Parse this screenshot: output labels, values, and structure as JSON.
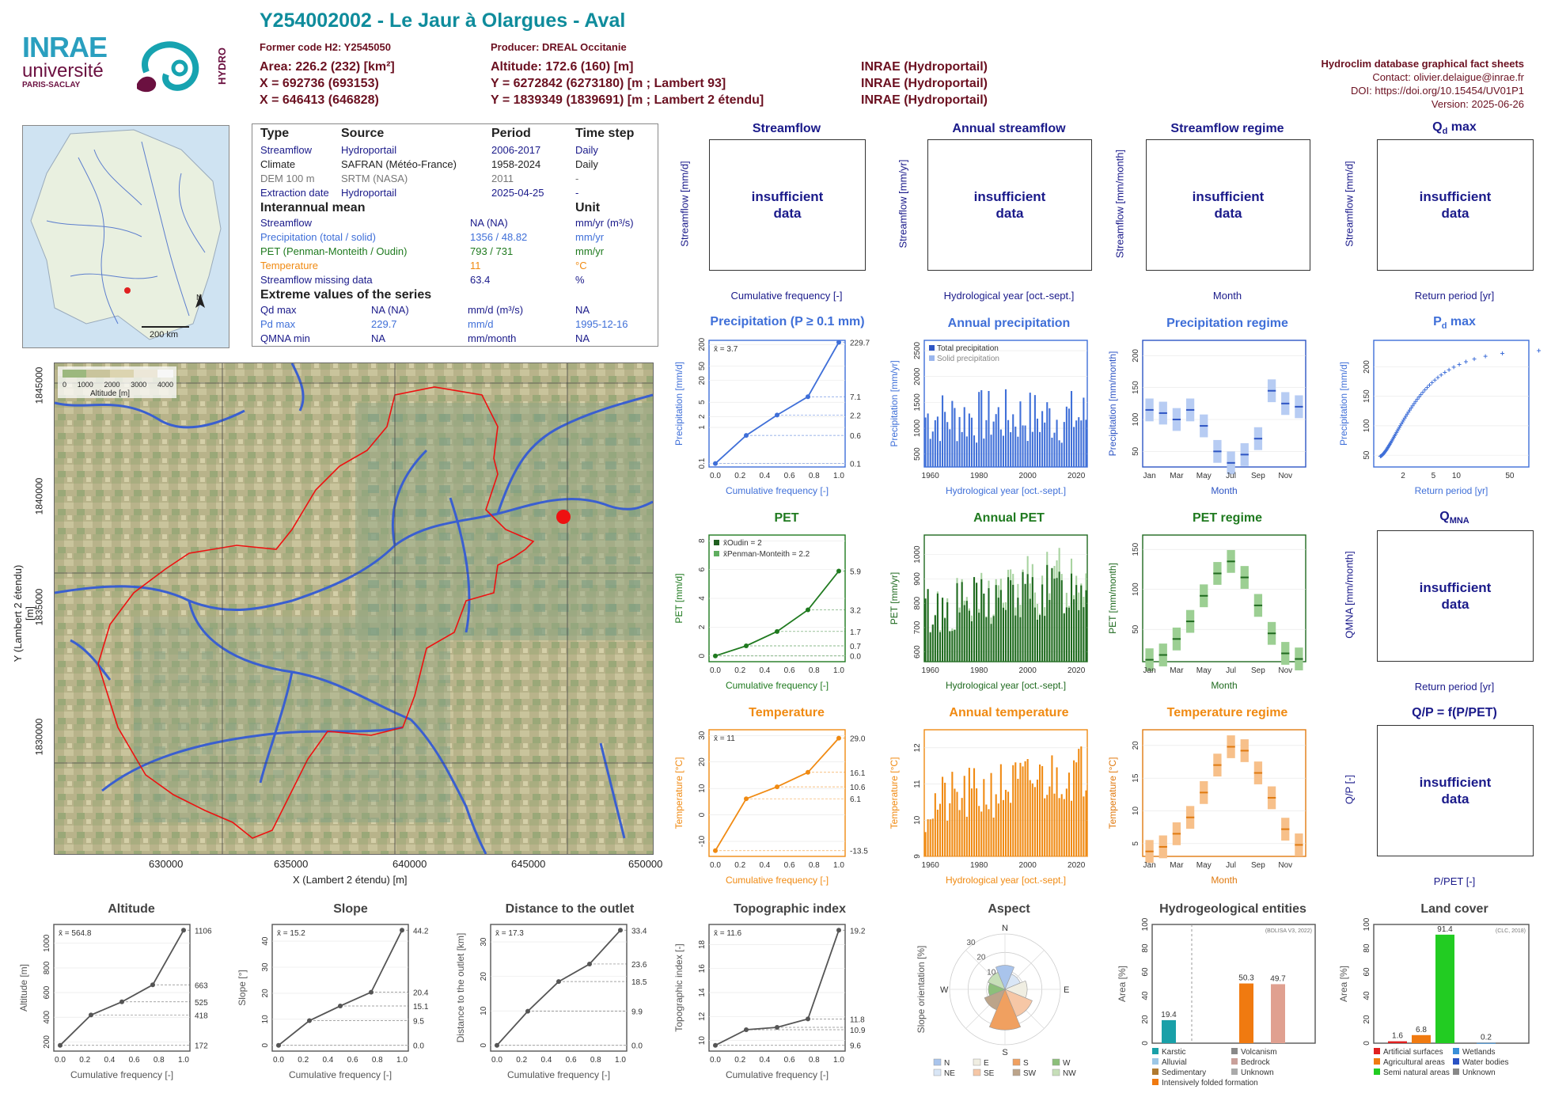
{
  "header": {
    "title": "Y254002002 - Le Jaur à Olargues - Aval",
    "former_code": "Former code H2: Y2545050",
    "producer": "Producer: DREAL Occitanie",
    "area": "Area: 226.2 (232) [km²]",
    "x_l93": "X = 692736 (693153)",
    "x_l2": "X = 646413 (646828)",
    "altitude": "Altitude: 172.6 (160) [m]",
    "y_l93": "Y = 6272842 (6273180) [m ; Lambert 93]",
    "y_l2": "Y = 1839349 (1839691) [m ; Lambert 2 étendu]",
    "src1": "INRAE (Hydroportail)",
    "src2": "INRAE (Hydroportail)",
    "src3": "INRAE (Hydroportail)",
    "db_title": "Hydroclim database graphical fact sheets",
    "contact": "Contact: olivier.delaigue@inrae.fr",
    "doi": "DOI: https://doi.org/10.15454/UV01P1",
    "version": "Version: 2025-06-26"
  },
  "logos": {
    "inrae": "INRAE",
    "universite": "université",
    "paris_saclay": "PARIS-SACLAY",
    "hydro": "HYDRO"
  },
  "locator_map": {
    "north": "N",
    "scale": "200 km"
  },
  "info": {
    "col_type": "Type",
    "col_source": "Source",
    "col_period": "Period",
    "col_timestep": "Time step",
    "rows": [
      {
        "type": "Streamflow",
        "source": "Hydroportail",
        "period": "2006-2017",
        "step": "Daily"
      },
      {
        "type": "Climate",
        "source": "SAFRAN (Météo-France)",
        "period": "1958-2024",
        "step": "Daily"
      },
      {
        "type": "DEM 100 m",
        "source": "SRTM (NASA)",
        "period": "2011",
        "step": "-"
      },
      {
        "type": "Extraction date",
        "source": "Hydroportail",
        "period": "2025-04-25",
        "step": "-"
      }
    ],
    "interannual_title": "Interannual mean",
    "unit_title": "Unit",
    "mean_rows": [
      {
        "label": "Streamflow",
        "value": "NA (NA)",
        "unit": "mm/yr (m³/s)"
      },
      {
        "label": "Precipitation (total / solid)",
        "value": "1356 / 48.82",
        "unit": "mm/yr"
      },
      {
        "label": "PET (Penman-Monteith / Oudin)",
        "value": "793 / 731",
        "unit": "mm/yr"
      },
      {
        "label": "Temperature",
        "value": "11",
        "unit": "°C"
      },
      {
        "label": "Streamflow missing data",
        "value": "63.4",
        "unit": "%"
      }
    ],
    "extreme_title": "Extreme values of the series",
    "extreme_rows": [
      {
        "label": "Qd max",
        "value": "NA (NA)",
        "unit": "mm/d (m³/s)",
        "date": "NA"
      },
      {
        "label": "Pd max",
        "value": "229.7",
        "unit": "mm/d",
        "date": "1995-12-16"
      },
      {
        "label": "QMNA min",
        "value": "NA",
        "unit": "mm/month",
        "date": "NA"
      }
    ]
  },
  "basin_map": {
    "legend_title": "Altitude [m]",
    "legend_ticks": [
      "0",
      "1000",
      "2000",
      "3000",
      "4000"
    ],
    "x_label": "X (Lambert 2 étendu) [m]",
    "y_label": "Y (Lambert 2 étendu) [m]",
    "x_ticks": [
      "630000",
      "635000",
      "640000",
      "645000",
      "650000"
    ],
    "y_ticks": [
      "1845000",
      "1840000",
      "1835000",
      "1830000"
    ]
  },
  "panels": {
    "streamflow": {
      "title": "Streamflow",
      "ylabel": "Streamflow [mm/d]",
      "xlabel": "Cumulative frequency [-]",
      "msg1": "insufficient",
      "msg2": "data"
    },
    "annual_streamflow": {
      "title": "Annual streamflow",
      "ylabel": "Streamflow [mm/yr]",
      "xlabel": "Hydrological year [oct.-sept.]",
      "msg1": "insufficient",
      "msg2": "data"
    },
    "streamflow_regime": {
      "title": "Streamflow regime",
      "ylabel": "Streamflow [mm/month]",
      "xlabel": "Month",
      "msg1": "insufficient",
      "msg2": "data"
    },
    "qd_max": {
      "title": "Q",
      "title_sub": "d",
      "title_rest": " max",
      "ylabel": "Streamflow [mm/d]",
      "xlabel": "Return period [yr]",
      "msg1": "insufficient",
      "msg2": "data"
    },
    "precip": {
      "title": "Precipitation (P ≥ 0.1 mm)",
      "ylabel": "Precipitation [mm/d]",
      "xlabel": "Cumulative frequency [-]",
      "mean": "x̄ = 3.7"
    },
    "annual_precip": {
      "title": "Annual precipitation",
      "ylabel": "Precipitation [mm/yr]",
      "xlabel": "Hydrological year [oct.-sept.]",
      "legend1": "Total precipitation",
      "legend2": "Solid precipitation"
    },
    "precip_regime": {
      "title": "Precipitation regime",
      "ylabel": "Precipitation [mm/month]",
      "xlabel": "Month"
    },
    "pd_max": {
      "title": "P",
      "title_sub": "d",
      "title_rest": " max",
      "ylabel": "Precipitation [mm/d]",
      "xlabel": "Return period [yr]"
    },
    "pet": {
      "title": "PET",
      "ylabel": "PET [mm/d]",
      "xlabel": "Cumulative frequency [-]",
      "legend1": "x̄Oudin = 2",
      "legend2": "x̄Penman-Monteith = 2.2"
    },
    "annual_pet": {
      "title": "Annual PET",
      "ylabel": "PET [mm/yr]",
      "xlabel": "Hydrological year [oct.-sept.]"
    },
    "pet_regime": {
      "title": "PET regime",
      "ylabel": "PET [mm/month]",
      "xlabel": "Month"
    },
    "qmna": {
      "title": "Q",
      "title_sub": "MNA",
      "ylabel": "QMNA [mm/month]",
      "xlabel": "Return period [yr]",
      "msg1": "insufficient",
      "msg2": "data"
    },
    "temp": {
      "title": "Temperature",
      "ylabel": "Temperature [°C]",
      "xlabel": "Cumulative frequency [-]",
      "mean": "x̄ = 11"
    },
    "annual_temp": {
      "title": "Annual temperature",
      "ylabel": "Temperature [°C]",
      "xlabel": "Hydrological year [oct.-sept.]"
    },
    "temp_regime": {
      "title": "Temperature regime",
      "ylabel": "Temperature [°C]",
      "xlabel": "Month"
    },
    "qp": {
      "title": "Q/P = f(P/PET)",
      "ylabel": "Q/P [-]",
      "xlabel": "P/PET [-]",
      "msg1": "insufficient",
      "msg2": "data"
    },
    "altitude": {
      "title": "Altitude",
      "ylabel": "Altitude [m]",
      "xlabel": "Cumulative frequency [-]",
      "mean": "x̄ = 564.8"
    },
    "slope": {
      "title": "Slope",
      "ylabel": "Slope [°]",
      "xlabel": "Cumulative frequency [-]",
      "mean": "x̄ = 15.2"
    },
    "distance": {
      "title": "Distance to the outlet",
      "ylabel": "Distance to the outlet [km]",
      "xlabel": "Cumulative frequency [-]",
      "mean": "x̄ = 17.3"
    },
    "topo": {
      "title": "Topographic index",
      "ylabel": "Topographic index [-]",
      "xlabel": "Cumulative frequency [-]",
      "mean": "x̄ = 11.6"
    },
    "aspect": {
      "title": "Aspect",
      "ylabel": "Slope orientation [%]",
      "legend": [
        "N",
        "E",
        "S",
        "W",
        "NE",
        "SE",
        "SW",
        "NW"
      ]
    },
    "hydrogeo": {
      "title": "Hydrogeological entities",
      "ylabel": "Area [%]",
      "source": "(BDLISA V3, 2022)",
      "legend": [
        "Karstic",
        "Volcanism",
        "Alluvial",
        "Bedrock",
        "Sedimentary",
        "Unknown",
        "Intensively folded formation"
      ]
    },
    "landcover": {
      "title": "Land cover",
      "ylabel": "Area [%]",
      "source": "(CLC, 2018)",
      "legend": [
        "Artificial surfaces",
        "Wetlands",
        "Agricultural areas",
        "Water bodies",
        "Semi natural areas",
        "Unknown"
      ]
    }
  },
  "chart_data": [
    {
      "type": "line",
      "name": "precip_cdf",
      "x": [
        0,
        0.25,
        0.5,
        0.75,
        1.0
      ],
      "y": [
        0.1,
        0.6,
        2.2,
        7.1,
        229.7
      ],
      "yscale": "log",
      "xlim": [
        0,
        1
      ],
      "yticks": [
        0.1,
        1,
        2,
        5,
        20,
        50,
        200
      ],
      "right_labels": [
        "229.7",
        "7.1",
        "2.2",
        "0.6",
        "0.1"
      ],
      "x_ticks": [
        "0.0",
        "0.2",
        "0.4",
        "0.6",
        "0.8",
        "1.0"
      ]
    },
    {
      "type": "bar",
      "name": "annual_precip",
      "xlim": [
        1958,
        2024
      ],
      "ylim": [
        250,
        2700
      ],
      "yticks": [
        500,
        1000,
        1500,
        2000,
        2500
      ],
      "x_ticks": [
        "1960",
        "1980",
        "2000",
        "2020"
      ]
    },
    {
      "type": "bar",
      "name": "precip_regime",
      "categories": [
        "Jan",
        "Feb",
        "Mar",
        "Apr",
        "May",
        "Jun",
        "Jul",
        "Aug",
        "Sep",
        "Oct",
        "Nov",
        "Dec"
      ],
      "values": [
        115,
        110,
        100,
        115,
        90,
        50,
        32,
        45,
        70,
        145,
        125,
        120
      ],
      "yticks": [
        50,
        100,
        150,
        200
      ],
      "x_ticks": [
        "Jan",
        "Mar",
        "May",
        "Jul",
        "Sep",
        "Nov"
      ]
    },
    {
      "type": "scatter",
      "name": "pd_max",
      "xlabel_ticks": [
        "2",
        "5",
        "10",
        "50"
      ],
      "yticks": [
        50,
        100,
        150,
        200
      ],
      "y_range": [
        48,
        230
      ]
    },
    {
      "type": "line",
      "name": "pet_cdf",
      "x": [
        0,
        0.25,
        0.5,
        0.75,
        1.0
      ],
      "y": [
        0.0,
        0.7,
        1.7,
        3.2,
        5.9
      ],
      "right_labels": [
        "5.9",
        "3.2",
        "1.7",
        "0.7",
        "0.0"
      ],
      "yticks": [
        0,
        2,
        4,
        6,
        8
      ],
      "x_ticks": [
        "0.0",
        "0.2",
        "0.4",
        "0.6",
        "0.8",
        "1.0"
      ]
    },
    {
      "type": "bar",
      "name": "annual_pet",
      "xlim": [
        1958,
        2024
      ],
      "ylim": [
        560,
        1080
      ],
      "yticks": [
        600,
        700,
        800,
        900,
        1000
      ],
      "x_ticks": [
        "1960",
        "1980",
        "2000",
        "2020"
      ]
    },
    {
      "type": "bar",
      "name": "pet_regime",
      "categories": [
        "Jan",
        "Feb",
        "Mar",
        "Apr",
        "May",
        "Jun",
        "Jul",
        "Aug",
        "Sep",
        "Oct",
        "Nov",
        "Dec"
      ],
      "values": [
        12,
        18,
        38,
        60,
        92,
        120,
        135,
        115,
        80,
        45,
        20,
        13
      ],
      "yticks": [
        50,
        100,
        150
      ],
      "x_ticks": [
        "Jan",
        "Mar",
        "May",
        "Jul",
        "Sep",
        "Nov"
      ]
    },
    {
      "type": "line",
      "name": "temp_cdf",
      "x": [
        0,
        0.25,
        0.5,
        0.75,
        1.0
      ],
      "y": [
        -13.5,
        6.1,
        10.6,
        16.1,
        29.0
      ],
      "right_labels": [
        "29.0",
        "16.1",
        "10.6",
        "6.1",
        "-13.5"
      ],
      "yticks": [
        -10,
        0,
        10,
        20,
        30
      ],
      "x_ticks": [
        "0.0",
        "0.2",
        "0.4",
        "0.6",
        "0.8",
        "1.0"
      ]
    },
    {
      "type": "bar",
      "name": "annual_temp",
      "xlim": [
        1958,
        2024
      ],
      "ylim": [
        9,
        12.5
      ],
      "yticks": [
        9,
        10,
        11,
        12
      ],
      "x_ticks": [
        "1960",
        "1980",
        "2000",
        "2020"
      ]
    },
    {
      "type": "bar",
      "name": "temp_regime",
      "categories": [
        "Jan",
        "Feb",
        "Mar",
        "Apr",
        "May",
        "Jun",
        "Jul",
        "Aug",
        "Sep",
        "Oct",
        "Nov",
        "Dec"
      ],
      "values": [
        3.8,
        4.5,
        6.5,
        9.0,
        12.8,
        17.0,
        19.8,
        19.2,
        15.8,
        12.0,
        7.2,
        4.8
      ],
      "yticks": [
        5,
        10,
        15,
        20
      ],
      "x_ticks": [
        "Jan",
        "Mar",
        "May",
        "Jul",
        "Sep",
        "Nov"
      ]
    },
    {
      "type": "line",
      "name": "altitude_cdf",
      "x": [
        0,
        0.25,
        0.5,
        0.75,
        1.0
      ],
      "y": [
        172,
        418,
        525,
        663,
        1106
      ],
      "right_labels": [
        "1106",
        "663",
        "525",
        "418",
        "172"
      ],
      "yticks": [
        200,
        400,
        600,
        800,
        1000
      ],
      "x_ticks": [
        "0.0",
        "0.2",
        "0.4",
        "0.6",
        "0.8",
        "1.0"
      ]
    },
    {
      "type": "line",
      "name": "slope_cdf",
      "x": [
        0,
        0.25,
        0.5,
        0.75,
        1.0
      ],
      "y": [
        0.0,
        9.5,
        15.1,
        20.4,
        44.2
      ],
      "right_labels": [
        "44.2",
        "20.4",
        "15.1",
        "9.5",
        "0.0"
      ],
      "yticks": [
        0,
        10,
        20,
        30,
        40
      ],
      "x_ticks": [
        "0.0",
        "0.2",
        "0.4",
        "0.6",
        "0.8",
        "1.0"
      ]
    },
    {
      "type": "line",
      "name": "distance_cdf",
      "x": [
        0,
        0.25,
        0.5,
        0.75,
        1.0
      ],
      "y": [
        0.0,
        9.9,
        18.5,
        23.6,
        33.4
      ],
      "right_labels": [
        "33.4",
        "23.6",
        "18.5",
        "9.9",
        "0.0"
      ],
      "yticks": [
        0,
        10,
        20,
        30
      ],
      "x_ticks": [
        "0.0",
        "0.2",
        "0.4",
        "0.6",
        "0.8",
        "1.0"
      ]
    },
    {
      "type": "line",
      "name": "topo_cdf",
      "x": [
        0,
        0.25,
        0.5,
        0.75,
        1.0
      ],
      "y": [
        9.6,
        10.9,
        11.1,
        11.8,
        19.2
      ],
      "right_labels": [
        "19.2",
        "11.8",
        "10.9",
        "9.6"
      ],
      "yticks": [
        10,
        12,
        14,
        16,
        18
      ],
      "x_ticks": [
        "0.0",
        "0.2",
        "0.4",
        "0.6",
        "0.8",
        "1.0"
      ]
    },
    {
      "type": "bar",
      "name": "aspect_rose",
      "categories": [
        "N",
        "NE",
        "E",
        "SE",
        "S",
        "SW",
        "W",
        "NW"
      ],
      "values": [
        13,
        9,
        12,
        16,
        22,
        12,
        9,
        10
      ],
      "rings": [
        10,
        20,
        30
      ]
    },
    {
      "type": "bar",
      "name": "hydrogeo",
      "categories": [
        "Karstic",
        "Intensively folded formation",
        "Bedrock"
      ],
      "values": [
        19.4,
        50.3,
        49.7
      ],
      "ylim": [
        0,
        100
      ],
      "yticks": [
        0,
        20,
        40,
        60,
        80,
        100
      ]
    },
    {
      "type": "bar",
      "name": "landcover",
      "categories": [
        "Artificial surfaces",
        "Agricultural areas",
        "Semi natural areas",
        "Wetlands"
      ],
      "values": [
        1.6,
        6.8,
        91.4,
        0.2
      ],
      "ylim": [
        0,
        100
      ],
      "yticks": [
        0,
        20,
        40,
        60,
        80,
        100
      ]
    }
  ]
}
